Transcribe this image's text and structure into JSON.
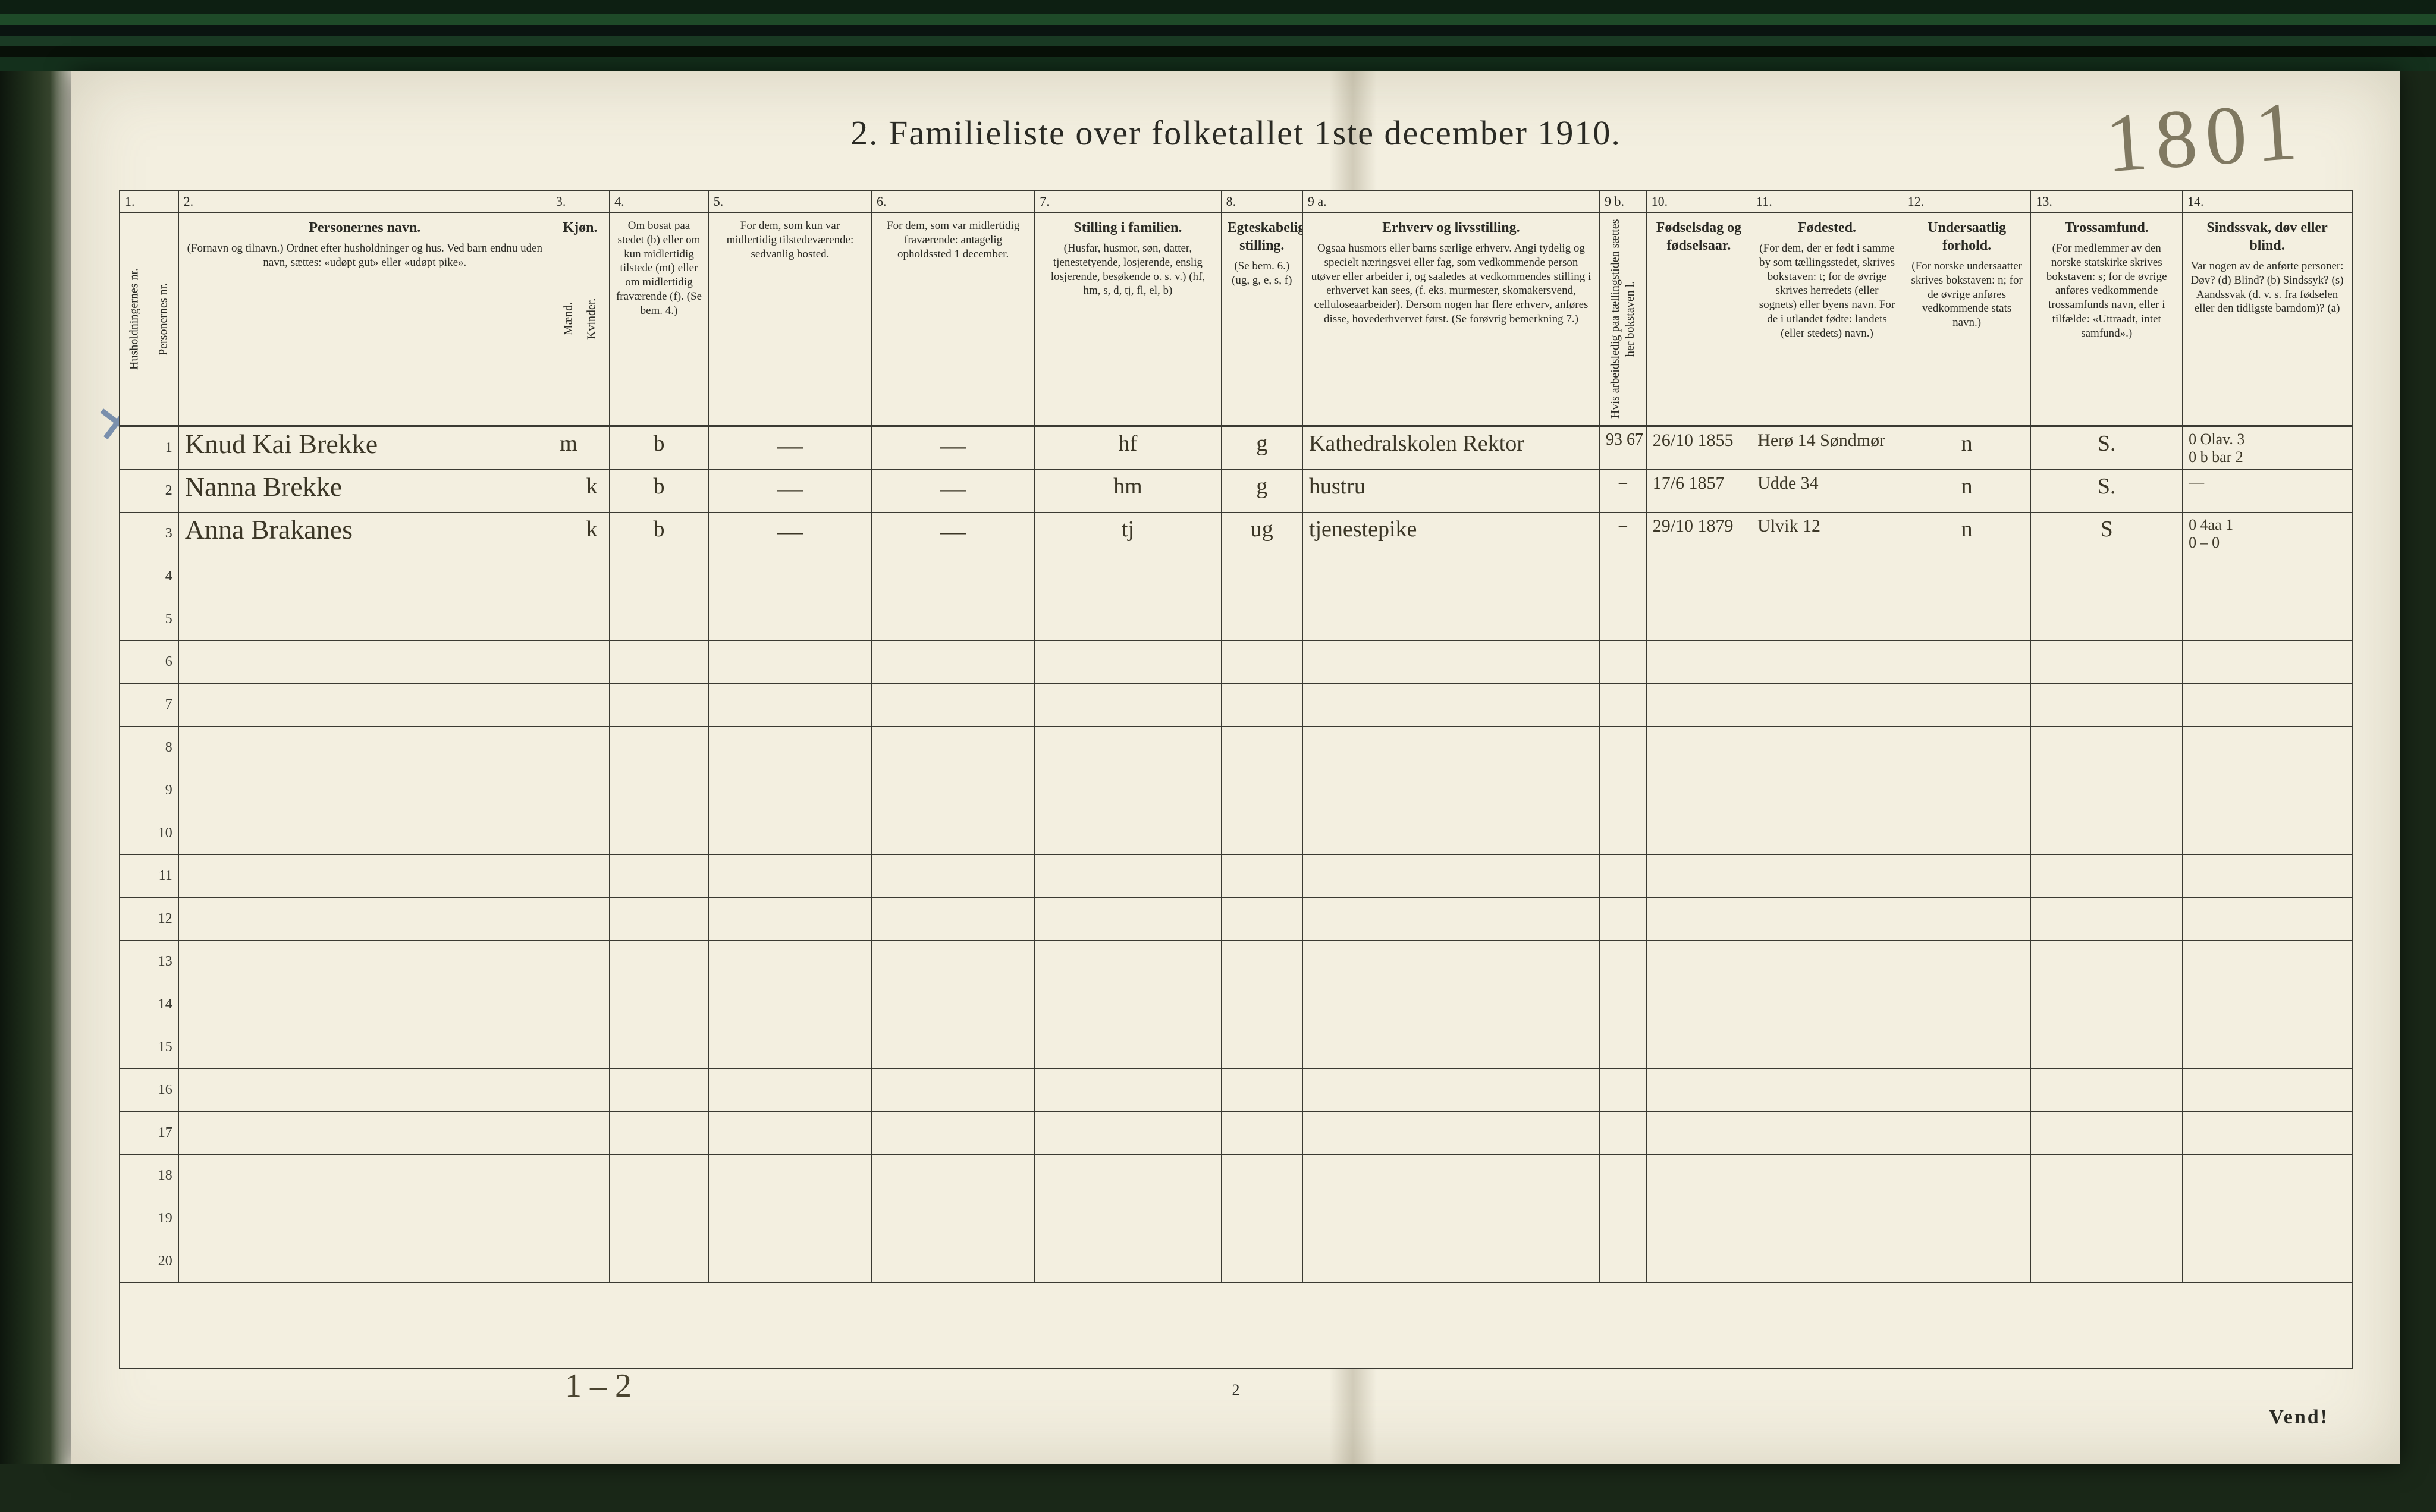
{
  "title": "2.   Familieliste over folketallet 1ste december 1910.",
  "handwritten_top": "1801",
  "footer": {
    "vend": "Vend!",
    "page_num": "2",
    "bottom_hand": "1 – 2"
  },
  "col_nums": [
    "1.",
    "",
    "2.",
    "3.",
    "4.",
    "5.",
    "6.",
    "7.",
    "8.",
    "9 a.",
    "9 b.",
    "10.",
    "11.",
    "12.",
    "13.",
    "14."
  ],
  "headers": {
    "c1": {
      "title": "",
      "body": "Husholdningernes nr."
    },
    "c1b": {
      "title": "",
      "body": "Personernes nr."
    },
    "c2": {
      "title": "Personernes navn.",
      "body": "(Fornavn og tilnavn.)\nOrdnet efter husholdninger og hus.\nVed barn endnu uden navn, sættes: «udøpt gut» eller «udøpt pike»."
    },
    "c3": {
      "title": "Kjøn.",
      "body": "Mænd.  Kvinder.",
      "mk": [
        "m.",
        "k."
      ]
    },
    "c4": {
      "title": "",
      "body": "Om bosat paa stedet (b) eller om kun midlertidig tilstede (mt) eller om midlertidig fraværende (f). (Se bem. 4.)"
    },
    "c5": {
      "title": "",
      "body": "For dem, som kun var midlertidig tilstedeværende:\nsedvanlig bosted."
    },
    "c6": {
      "title": "",
      "body": "For dem, som var midlertidig fraværende:\nantagelig opholdssted 1 december."
    },
    "c7": {
      "title": "Stilling i familien.",
      "body": "(Husfar, husmor, søn, datter, tjenestetyende, losjerende, enslig losjerende, besøkende o. s. v.)\n(hf, hm, s, d, tj, fl, el, b)"
    },
    "c8": {
      "title": "Egteskabelig stilling.",
      "body": "(Se bem. 6.)\n(ug, g, e, s, f)"
    },
    "c9a": {
      "title": "Erhverv og livsstilling.",
      "body": "Ogsaa husmors eller barns særlige erhverv. Angi tydelig og specielt næringsvei eller fag, som vedkommende person utøver eller arbeider i, og saaledes at vedkommendes stilling i erhvervet kan sees, (f. eks. murmester, skomakersvend, celluloseaarbeider). Dersom nogen har flere erhverv, anføres disse, hovederhvervet først. (Se forøvrig bemerkning 7.)"
    },
    "c9b": {
      "title": "",
      "body": "Hvis arbeidsledig paa tællingstiden sættes her bokstaven l."
    },
    "c10": {
      "title": "Fødselsdag og fødselsaar.",
      "body": ""
    },
    "c11": {
      "title": "Fødested.",
      "body": "(For dem, der er født i samme by som tællingsstedet, skrives bokstaven: t; for de øvrige skrives herredets (eller sognets) eller byens navn. For de i utlandet fødte: landets (eller stedets) navn.)"
    },
    "c12": {
      "title": "Undersaatlig forhold.",
      "body": "(For norske undersaatter skrives bokstaven: n; for de øvrige anføres vedkommende stats navn.)"
    },
    "c13": {
      "title": "Trossamfund.",
      "body": "(For medlemmer av den norske statskirke skrives bokstaven: s; for de øvrige anføres vedkommende trossamfunds navn, eller i tilfælde: «Uttraadt, intet samfund».)"
    },
    "c14": {
      "title": "Sindssvak, døv eller blind.",
      "body": "Var nogen av de anførte personer:\nDøv? (d)\nBlind? (b)\nSindssyk? (s)\nAandssvak (d. v. s. fra fødselen eller den tidligste barndom)? (a)"
    }
  },
  "rows": [
    {
      "n": "1",
      "name": "Knud Kai Brekke",
      "sex": "m",
      "bosat": "b",
      "c5": "—",
      "c6": "—",
      "stilling": "hf",
      "egte": "g",
      "erhverv": "Kathedralskolen\nRektor",
      "c9b": "93 67",
      "fods": "26/10 1855",
      "fodested": "Herø 14\nSøndmør",
      "unders": "n",
      "tros": "S.",
      "c14": "0 Olav. 3\n0 b bar 2"
    },
    {
      "n": "2",
      "name": "Nanna Brekke",
      "sex": "k",
      "bosat": "b",
      "c5": "—",
      "c6": "—",
      "stilling": "hm",
      "egte": "g",
      "erhverv": "hustru",
      "c9b": "–",
      "fods": "17/6 1857",
      "fodested": "Udde 34",
      "unders": "n",
      "tros": "S.",
      "c14": "—"
    },
    {
      "n": "3",
      "name": "Anna Brakanes",
      "sex": "k",
      "bosat": "b",
      "c5": "—",
      "c6": "—",
      "stilling": "tj",
      "egte": "ug",
      "erhverv": "tjenestepike",
      "c9b": "–",
      "fods": "29/10 1879",
      "fodested": "Ulvik 12",
      "unders": "n",
      "tros": "S",
      "c14": "0   4aa 1\n0 – 0"
    }
  ],
  "empty_rows": [
    "4",
    "5",
    "6",
    "7",
    "8",
    "9",
    "10",
    "11",
    "12",
    "13",
    "14",
    "15",
    "16",
    "17",
    "18",
    "19",
    "20"
  ],
  "colors": {
    "paper": "#f3efe0",
    "ink": "#2a2a24",
    "handwriting": "#3b3626",
    "rule": "#3a3a32",
    "blue_pencil": "#4a6a9a",
    "background": "#1a2818"
  }
}
